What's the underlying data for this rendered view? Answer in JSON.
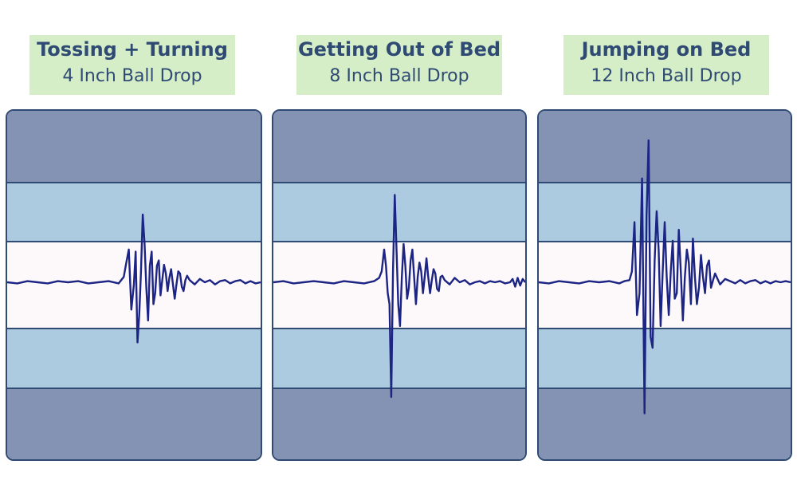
{
  "chart_data": [
    {
      "type": "line",
      "title": "Tossing + Turning",
      "subtitle": "4 Inch Ball Drop",
      "ylim": [
        -1,
        1
      ],
      "x": [
        0,
        4,
        8,
        12,
        16,
        20,
        24,
        28,
        32,
        36,
        40,
        44,
        46,
        47,
        48,
        49,
        50,
        50.7,
        51.4,
        52.1,
        52.8,
        53.5,
        54.2,
        54.9,
        55.6,
        56.3,
        57,
        57.7,
        58.4,
        59.1,
        59.8,
        60.5,
        61.2,
        61.9,
        62.6,
        63.3,
        64,
        64.7,
        65.4,
        66.1,
        66.8,
        67.5,
        68.2,
        68.9,
        69.6,
        70.3,
        71,
        72,
        74,
        76,
        78,
        80,
        82,
        84,
        86,
        88,
        90,
        92,
        94,
        96,
        98,
        100
      ],
      "values": [
        0,
        -0.01,
        0.01,
        0,
        -0.01,
        0.01,
        0,
        0.01,
        -0.01,
        0,
        0.01,
        -0.01,
        0.05,
        0.18,
        0.3,
        -0.25,
        -0.02,
        0.28,
        -0.55,
        -0.3,
        0.1,
        0.62,
        0.35,
        -0.05,
        -0.35,
        0.15,
        0.28,
        -0.2,
        -0.1,
        0.15,
        0.2,
        -0.12,
        0.02,
        0.16,
        0.08,
        -0.08,
        0.04,
        0.12,
        -0.02,
        -0.15,
        -0.02,
        0.1,
        0.08,
        -0.04,
        -0.08,
        0.02,
        0.06,
        0.02,
        -0.02,
        0.03,
        0,
        0.02,
        -0.02,
        0.01,
        0.02,
        -0.01,
        0.01,
        0.02,
        -0.01,
        0.01,
        -0.01,
        0
      ]
    },
    {
      "type": "line",
      "title": "Getting Out of Bed",
      "subtitle": "8 Inch Ball Drop",
      "ylim": [
        -1,
        1
      ],
      "x": [
        0,
        4,
        8,
        12,
        16,
        20,
        24,
        28,
        32,
        36,
        40,
        42,
        43,
        44,
        44.7,
        45.4,
        46.1,
        46.8,
        47.5,
        48.2,
        48.9,
        49.6,
        50.3,
        51,
        51.7,
        52.4,
        53.1,
        53.8,
        54.5,
        55.2,
        55.9,
        56.6,
        57.3,
        58,
        58.7,
        59.4,
        60.1,
        60.8,
        61.5,
        62.2,
        62.9,
        63.6,
        64.3,
        65,
        65.7,
        66.4,
        67.1,
        68,
        70,
        72,
        74,
        76,
        78,
        80,
        82,
        84,
        86,
        88,
        90,
        92,
        94,
        95,
        96,
        97,
        98,
        99,
        100
      ],
      "values": [
        0,
        0.01,
        -0.01,
        0,
        0.01,
        0,
        -0.01,
        0.01,
        0,
        -0.01,
        0.01,
        0.04,
        0.1,
        0.3,
        0.15,
        -0.1,
        -0.2,
        -1.05,
        0.1,
        0.8,
        0.3,
        -0.2,
        -0.4,
        0.05,
        0.35,
        0.15,
        -0.15,
        -0.05,
        0.2,
        0.3,
        0.05,
        -0.2,
        0.05,
        0.18,
        0.1,
        -0.1,
        0.05,
        0.22,
        0.05,
        -0.1,
        0.02,
        0.12,
        0.08,
        -0.06,
        -0.08,
        0.05,
        0.06,
        0.02,
        -0.02,
        0.04,
        0,
        0.02,
        -0.02,
        0,
        0.01,
        -0.01,
        0.01,
        0,
        0.01,
        -0.01,
        0,
        0.03,
        -0.04,
        0.04,
        -0.03,
        0.03,
        0
      ]
    },
    {
      "type": "line",
      "title": "Jumping on Bed",
      "subtitle": "12 Inch Ball Drop",
      "ylim": [
        -1,
        1
      ],
      "x": [
        0,
        4,
        8,
        12,
        16,
        20,
        24,
        28,
        32,
        34,
        36,
        37,
        38,
        39,
        40,
        41,
        42,
        42.8,
        43.6,
        44.4,
        45.2,
        46,
        46.8,
        47.6,
        48.4,
        49.2,
        50,
        50.8,
        51.6,
        52.4,
        53.2,
        54,
        54.8,
        55.6,
        56.4,
        57.2,
        58,
        58.8,
        59.6,
        60.4,
        61.2,
        62,
        62.8,
        63.6,
        64.4,
        65.2,
        66,
        66.8,
        67.6,
        68.4,
        69.2,
        70,
        72,
        74,
        76,
        78,
        80,
        82,
        84,
        86,
        88,
        90,
        92,
        94,
        96,
        98,
        100
      ],
      "values": [
        0,
        -0.01,
        0.01,
        0,
        -0.01,
        0.01,
        0,
        0.01,
        -0.01,
        0.01,
        0.02,
        0.1,
        0.55,
        -0.3,
        -0.1,
        0.95,
        -1.2,
        0.6,
        1.3,
        -0.5,
        -0.6,
        0.2,
        0.65,
        0.3,
        -0.4,
        0.1,
        0.55,
        0.05,
        -0.3,
        0.1,
        0.38,
        -0.15,
        -0.1,
        0.48,
        0.1,
        -0.35,
        0.05,
        0.3,
        0.18,
        -0.2,
        0.4,
        0.05,
        -0.2,
        -0.05,
        0.25,
        0.05,
        -0.1,
        0.15,
        0.2,
        -0.05,
        0.02,
        0.08,
        -0.02,
        0.03,
        0.01,
        -0.01,
        0.02,
        -0.01,
        0.01,
        0.02,
        -0.01,
        0.01,
        -0.01,
        0.01,
        0,
        0.01,
        0
      ]
    }
  ]
}
